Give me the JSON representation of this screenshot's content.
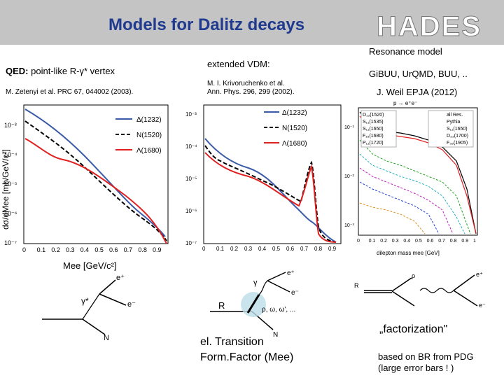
{
  "header": {
    "title": "Models for Dalitz decays",
    "logo": "HADES"
  },
  "left": {
    "heading_bold": "QED:",
    "heading_rest": "point-like R-γ* vertex",
    "reference": "M. Zetenyi et al. PRC 67, 044002 (2003).",
    "legend": [
      "Δ(1232)",
      "N(1520)",
      "Λ(1680)"
    ],
    "y_ticks": [
      "10⁻³",
      "10⁻⁴",
      "10⁻⁵",
      "10⁻⁶",
      "10⁻⁷"
    ],
    "x_ticks": [
      "0",
      "0.1",
      "0.2",
      "0.3",
      "0.4",
      "0.5",
      "0.6",
      "0.7",
      "0.8",
      "0.9"
    ],
    "y_label": "dσ/dMee [mb/GeV/c²]",
    "x_label": "Mee [GeV/c²]"
  },
  "middle": {
    "heading": "extended VDM:",
    "reference_line1": "M. I. Krivoruchenko et al.",
    "reference_line2": "Ann. Phys. 296, 299 (2002).",
    "legend": [
      "Δ(1232)",
      "N(1520)",
      "Λ(1680)"
    ],
    "y_ticks": [
      "10⁻³",
      "10⁻⁴",
      "10⁻⁵",
      "10⁻⁶",
      "10⁻⁷"
    ],
    "x_ticks": [
      "0",
      "0.1",
      "0.2",
      "0.3",
      "0.4",
      "0.5",
      "0.6",
      "0.7",
      "0.8",
      "0.9"
    ],
    "caption_line1": "el. Transition",
    "caption_line2": "Form.Factor (Mee)"
  },
  "right": {
    "heading": "Resonance model",
    "models": "GiBUU, UrQMD, BUU, ..",
    "reference": "J. Weil EPJA (2012)",
    "reaction": "p → e⁺e⁻",
    "legend_left": [
      "D₁₃(1520)",
      "S₁₁(1535)",
      "S₁₁(1650)",
      "F₁₅(1680)",
      "P₁₁(1720)"
    ],
    "legend_right": [
      "all Res.",
      "Pythia",
      "S₁₁(1650)",
      "D₃₃(1700)",
      "F₃₅(1905)"
    ],
    "x_ticks": [
      "0",
      "0.1",
      "0.2",
      "0.3",
      "0.4",
      "0.5",
      "0.6",
      "0.7",
      "0.8",
      "0.9",
      "1"
    ],
    "y_ticks": [
      "10⁻¹",
      "10⁻²",
      "10⁻³"
    ],
    "x_label": "dilepton mass mee [GeV]",
    "factorization": "„factorization\"",
    "note_line1": "based on BR from PDG",
    "note_line2": "(large error bars ! )"
  },
  "diagram_labels": {
    "gamma": "γ*",
    "eplus": "e⁺",
    "eminus": "e⁻",
    "N": "N",
    "R": "R",
    "vm": "ρ, ω, ω', ...",
    "gamma2": "γ",
    "rho": "ρ"
  },
  "colors": {
    "title": "#1f3a8f",
    "delta": "#3b5ba8",
    "n1520": "#000000",
    "l1680": "#e02020"
  }
}
